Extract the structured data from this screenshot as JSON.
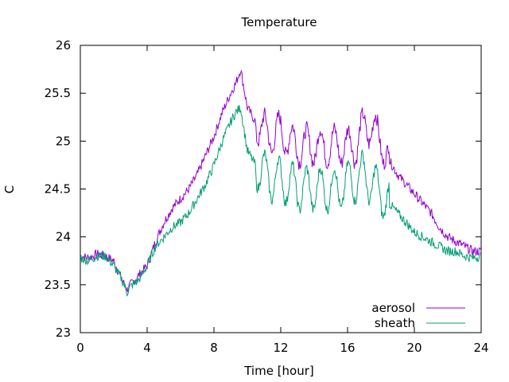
{
  "chart_data": {
    "type": "line",
    "title": "Temperature",
    "xlabel": "Time [hour]",
    "ylabel": "C",
    "xlim": [
      0,
      24
    ],
    "ylim": [
      23,
      26
    ],
    "xticks": [
      0,
      4,
      8,
      12,
      16,
      20,
      24
    ],
    "yticks": [
      23,
      23.5,
      24,
      24.5,
      25,
      25.5,
      26
    ],
    "legend_position": "bottom-right",
    "grid": false,
    "series": [
      {
        "name": "aerosol",
        "color": "#9400d3",
        "x": [
          0,
          0.5,
          1,
          1.5,
          2,
          2.5,
          2.8,
          3,
          3.5,
          4,
          4.5,
          5,
          5.5,
          6,
          6.5,
          7,
          7.5,
          8,
          8.5,
          9,
          9.3,
          9.6,
          10,
          10.5,
          11,
          11.5,
          12,
          12.5,
          13,
          13.5,
          14,
          14.5,
          15,
          15.5,
          16,
          16.5,
          17,
          17.5,
          18,
          18.5,
          19,
          19.5,
          20,
          20.5,
          21,
          21.5,
          22,
          22.5,
          23,
          23.5,
          24
        ],
        "y": [
          23.8,
          23.78,
          23.82,
          23.8,
          23.75,
          23.55,
          23.45,
          23.5,
          23.6,
          23.7,
          23.95,
          24.15,
          24.3,
          24.4,
          24.5,
          24.65,
          24.85,
          25.05,
          25.3,
          25.5,
          25.6,
          25.75,
          25.35,
          25.2,
          25.1,
          25.05,
          25.1,
          25.0,
          24.95,
          24.95,
          24.95,
          24.95,
          24.95,
          24.95,
          24.95,
          24.95,
          25.15,
          25.15,
          25.0,
          24.8,
          24.65,
          24.55,
          24.45,
          24.35,
          24.25,
          24.1,
          24.0,
          23.95,
          23.9,
          23.85,
          23.85
        ]
      },
      {
        "name": "sheath",
        "color": "#009e73",
        "x": [
          0,
          0.5,
          1,
          1.5,
          2,
          2.5,
          2.8,
          3,
          3.5,
          4,
          4.5,
          5,
          5.5,
          6,
          6.5,
          7,
          7.5,
          8,
          8.5,
          9,
          9.3,
          9.6,
          10,
          10.5,
          11,
          11.5,
          12,
          12.5,
          13,
          13.5,
          14,
          14.5,
          15,
          15.5,
          16,
          16.5,
          17,
          17.5,
          18,
          18.5,
          19,
          19.5,
          20,
          20.5,
          21,
          21.5,
          22,
          22.5,
          23,
          23.5,
          24
        ],
        "y": [
          23.78,
          23.75,
          23.8,
          23.8,
          23.7,
          23.55,
          23.42,
          23.48,
          23.55,
          23.7,
          23.9,
          24.0,
          24.1,
          24.15,
          24.25,
          24.4,
          24.55,
          24.75,
          25.0,
          25.2,
          25.3,
          25.35,
          24.9,
          24.75,
          24.65,
          24.6,
          24.6,
          24.55,
          24.5,
          24.5,
          24.5,
          24.5,
          24.5,
          24.5,
          24.55,
          24.6,
          24.65,
          24.55,
          24.45,
          24.35,
          24.25,
          24.15,
          24.05,
          24.0,
          23.95,
          23.9,
          23.85,
          23.85,
          23.8,
          23.78,
          23.8
        ]
      }
    ]
  }
}
